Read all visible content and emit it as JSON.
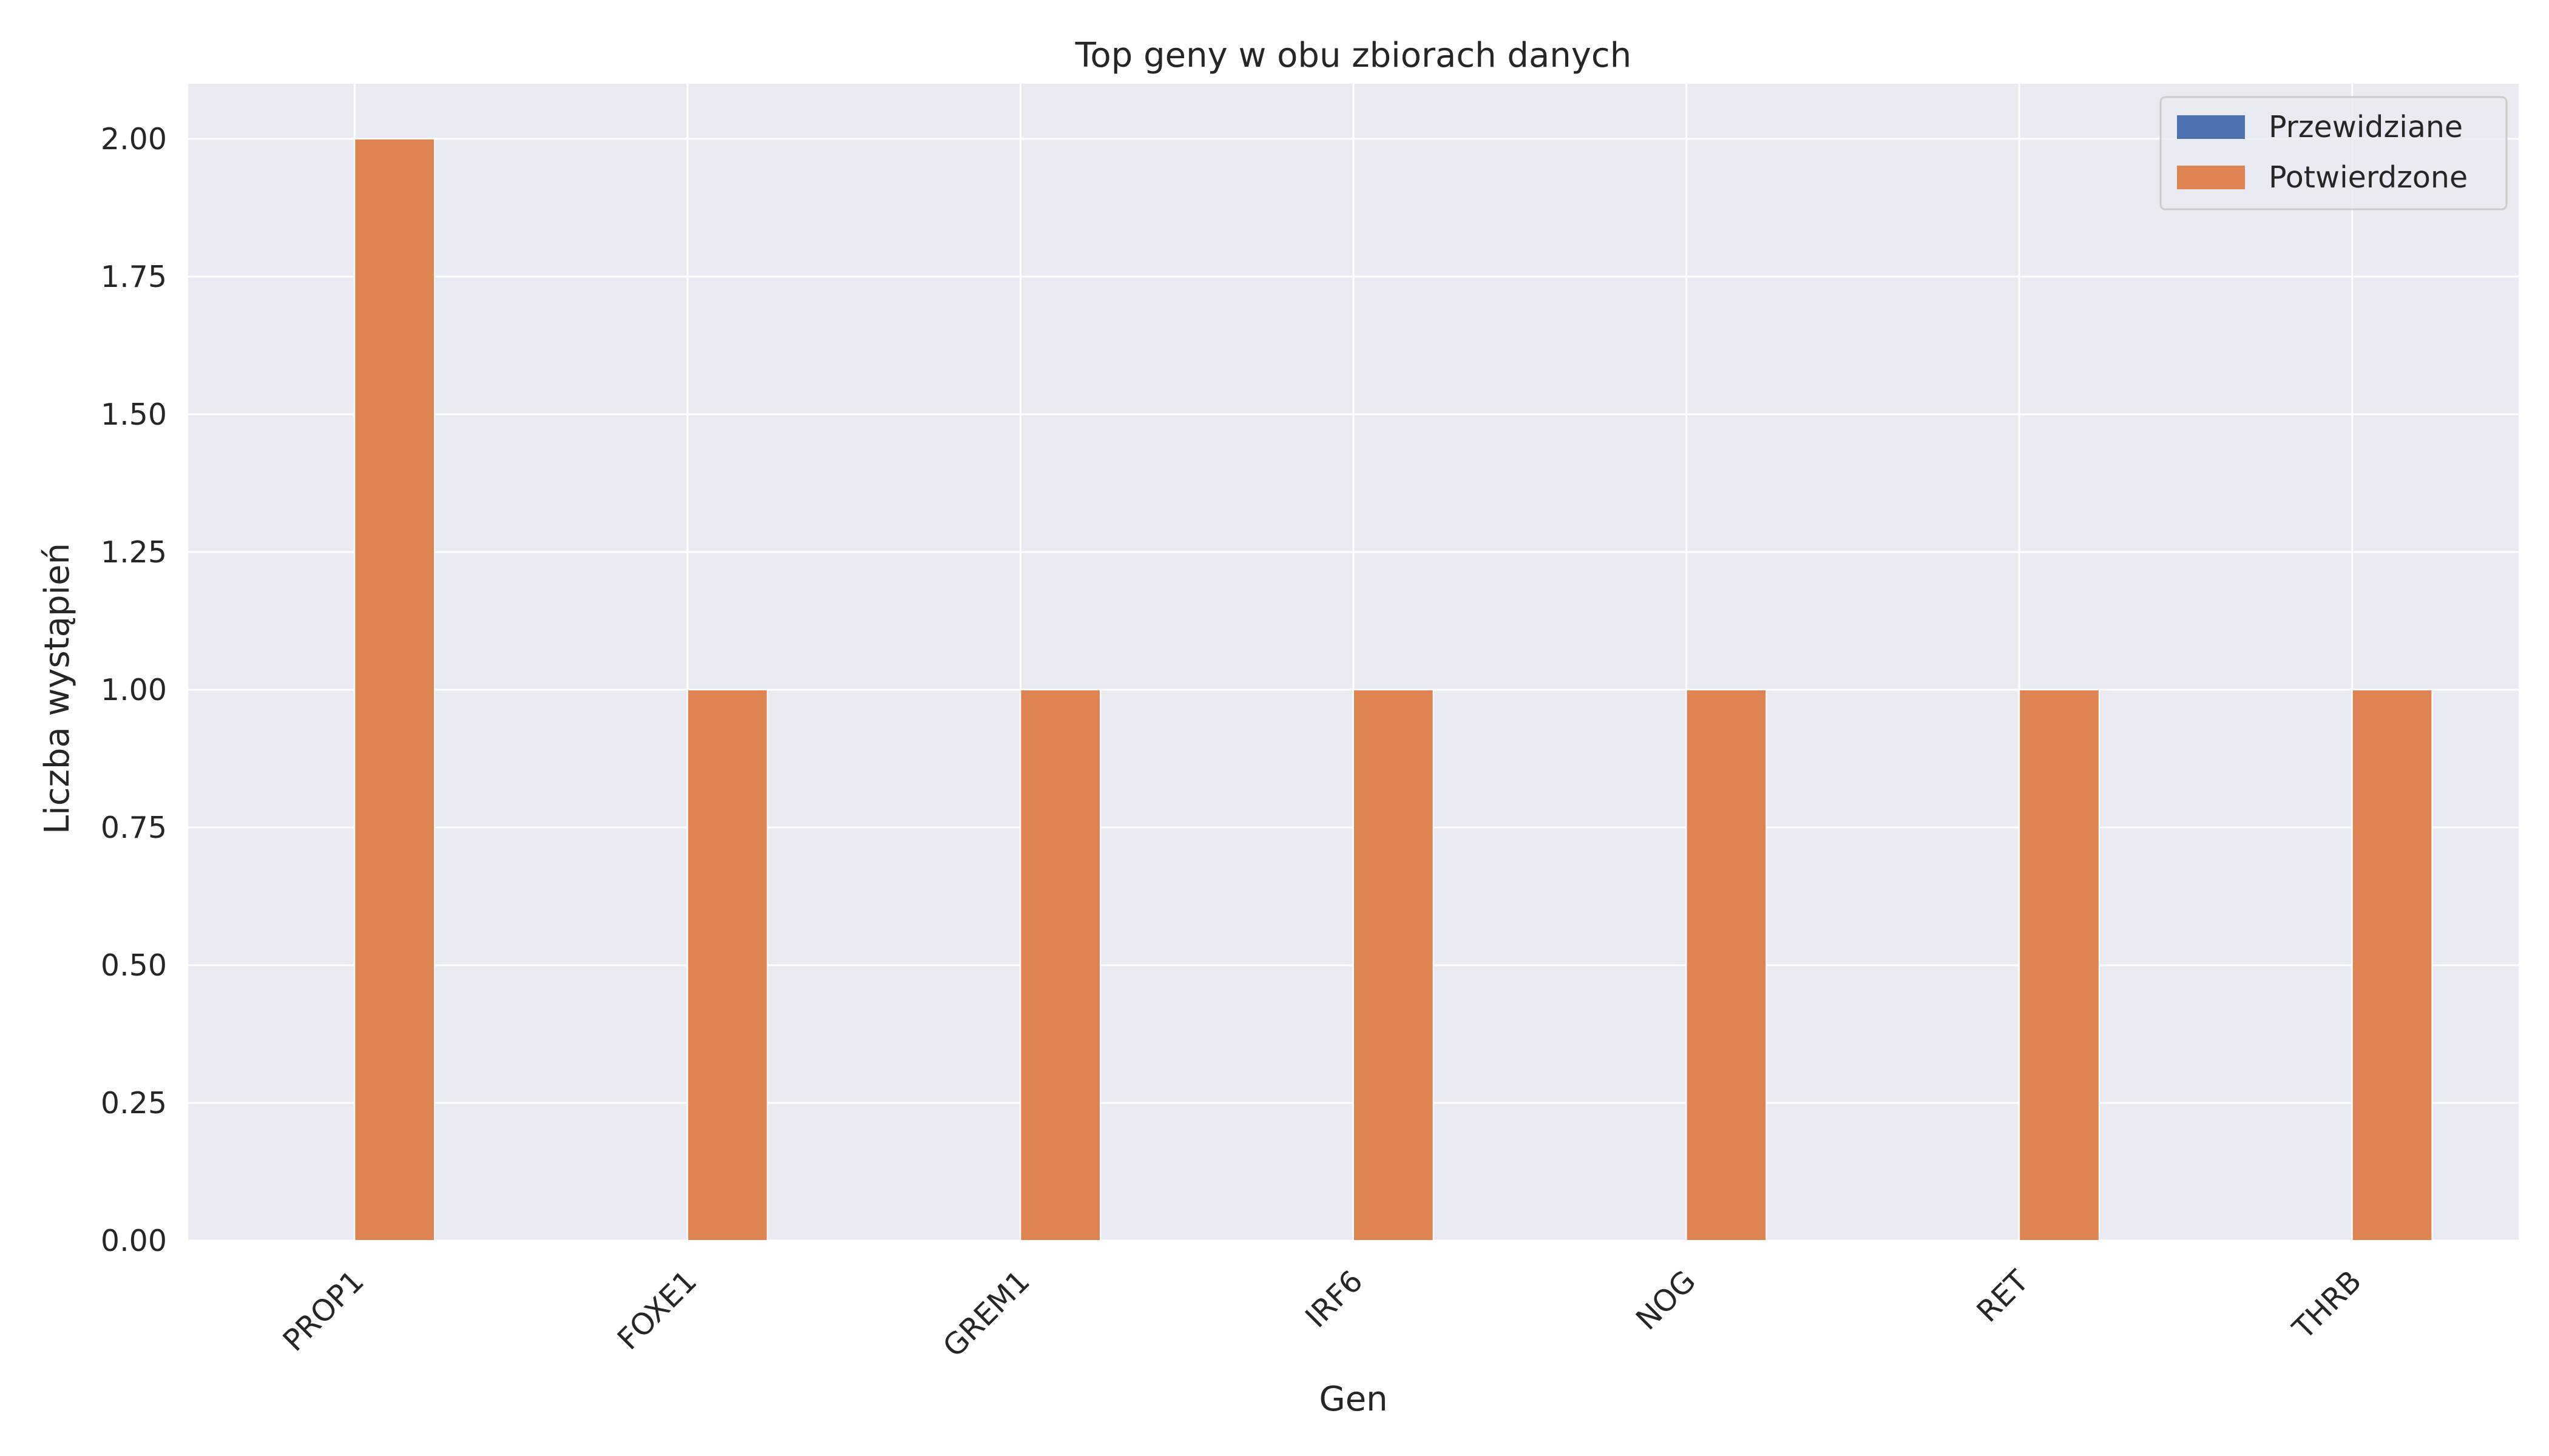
{
  "chart_data": {
    "type": "bar",
    "title": "Top geny w obu zbiorach danych",
    "xlabel": "Gen",
    "ylabel": "Liczba wystąpień",
    "categories": [
      "PROP1",
      "FOXE1",
      "GREM1",
      "IRF6",
      "NOG",
      "RET",
      "THRB"
    ],
    "series": [
      {
        "name": "Przewidziane",
        "color": "#4c72b0",
        "values": [
          0,
          0,
          0,
          0,
          0,
          0,
          0
        ]
      },
      {
        "name": "Potwierdzone",
        "color": "#dd8452",
        "values": [
          2,
          1,
          1,
          1,
          1,
          1,
          1
        ]
      }
    ],
    "ylim": [
      0,
      2.1
    ],
    "yticks": [
      "0.00",
      "0.25",
      "0.50",
      "0.75",
      "1.00",
      "1.25",
      "1.50",
      "1.75",
      "2.00"
    ],
    "grid": true,
    "legend_position": "top-right",
    "colors": {
      "plot_background": "#eaeaf2",
      "grid": "#ffffff"
    }
  }
}
